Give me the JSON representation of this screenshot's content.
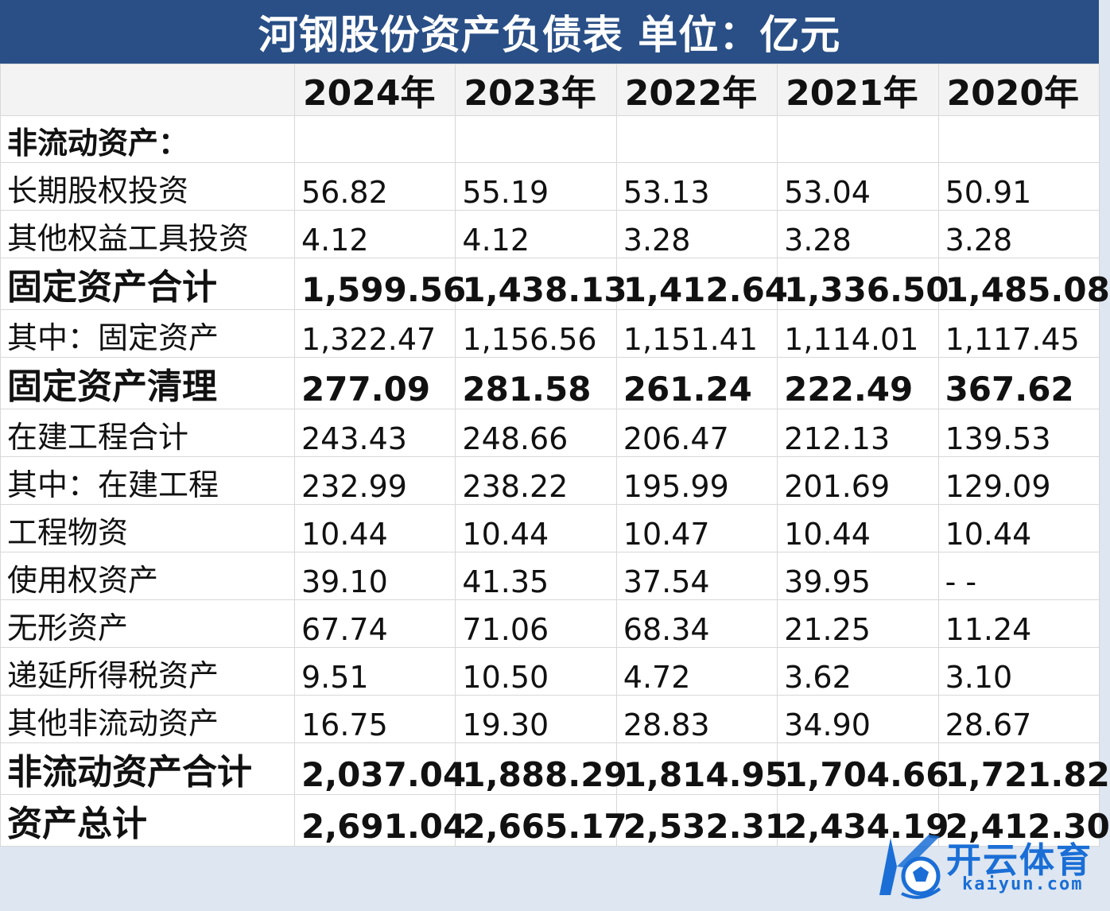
{
  "title": "河钢股份资产负债表 单位：亿元",
  "header": {
    "corner": "",
    "years": [
      "2024年",
      "2023年",
      "2022年",
      "2021年",
      "2020年"
    ]
  },
  "rows": [
    {
      "label": "非流动资产：",
      "style": "section",
      "values": [
        "",
        "",
        "",
        "",
        ""
      ]
    },
    {
      "label": "长期股权投资",
      "style": "normal",
      "values": [
        "56.82",
        "55.19",
        "53.13",
        "53.04",
        "50.91"
      ]
    },
    {
      "label": "其他权益工具投资",
      "style": "normal",
      "values": [
        "4.12",
        "4.12",
        "3.28",
        "3.28",
        "3.28"
      ]
    },
    {
      "label": "固定资产合计",
      "style": "bold",
      "values": [
        "1,599.56",
        "1,438.13",
        "1,412.64",
        "1,336.50",
        "1,485.08"
      ]
    },
    {
      "label": "其中：固定资产",
      "style": "normal",
      "values": [
        "1,322.47",
        "1,156.56",
        "1,151.41",
        "1,114.01",
        "1,117.45"
      ]
    },
    {
      "label": "固定资产清理",
      "style": "bold",
      "values": [
        "277.09",
        "281.58",
        "261.24",
        "222.49",
        "367.62"
      ]
    },
    {
      "label": "在建工程合计",
      "style": "normal",
      "values": [
        "243.43",
        "248.66",
        "206.47",
        "212.13",
        "139.53"
      ]
    },
    {
      "label": "其中：在建工程",
      "style": "normal",
      "values": [
        "232.99",
        "238.22",
        "195.99",
        "201.69",
        "129.09"
      ]
    },
    {
      "label": "工程物资",
      "style": "normal",
      "values": [
        "10.44",
        "10.44",
        "10.47",
        "10.44",
        "10.44"
      ]
    },
    {
      "label": "使用权资产",
      "style": "normal",
      "values": [
        "39.10",
        "41.35",
        "37.54",
        "39.95",
        "- -"
      ]
    },
    {
      "label": "无形资产",
      "style": "normal",
      "values": [
        "67.74",
        "71.06",
        "68.34",
        "21.25",
        "11.24"
      ]
    },
    {
      "label": "递延所得税资产",
      "style": "normal",
      "values": [
        "9.51",
        "10.50",
        "4.72",
        "3.62",
        "3.10"
      ]
    },
    {
      "label": "其他非流动资产",
      "style": "normal",
      "values": [
        "16.75",
        "19.30",
        "28.83",
        "34.90",
        "28.67"
      ]
    },
    {
      "label": "非流动资产合计",
      "style": "bold",
      "values": [
        "2,037.04",
        "1,888.29",
        "1,814.95",
        "1,704.66",
        "1,721.82"
      ]
    },
    {
      "label": "资产总计",
      "style": "bold",
      "values": [
        "2,691.04",
        "2,665.17",
        "2,532.31",
        "2,434.19",
        "2,412.30"
      ]
    }
  ],
  "watermark": {
    "text": "开云体育",
    "url": "kaiyun.com",
    "logo_icon": "k-soccer-ball-logo-icon",
    "color": "#1a6ed6"
  },
  "colors": {
    "title_bg": "#294f86",
    "header_bg": "#f3f3f3",
    "footer_bg": "#dde6f1"
  }
}
